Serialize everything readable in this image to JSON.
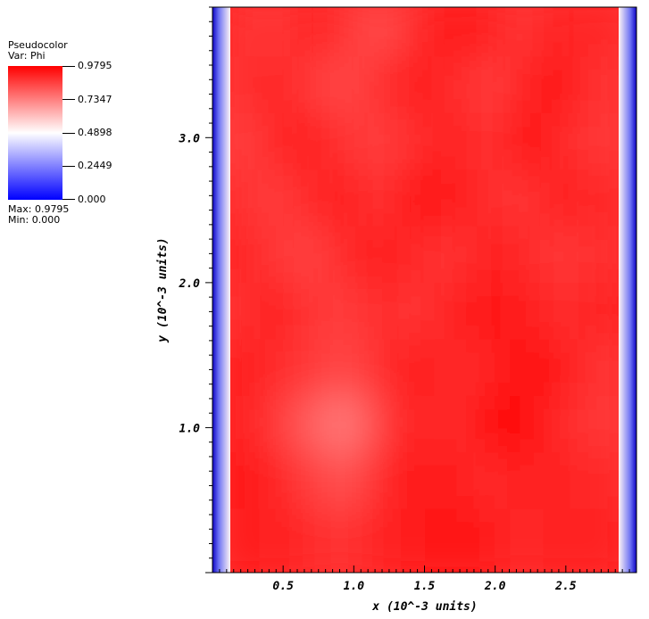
{
  "legend": {
    "title": "Pseudocolor",
    "var": "Var: Phi",
    "ticks": [
      "0.9795",
      "0.7347",
      "0.4898",
      "0.2449",
      "0.000"
    ],
    "max": "Max:  0.9795",
    "min": "Min:  0.000"
  },
  "chart_data": {
    "type": "heatmap",
    "variable": "Phi",
    "xlabel": "x (10^-3 units)",
    "ylabel": "y (10^-3 units)",
    "xlim": [
      0,
      3.0
    ],
    "ylim": [
      0,
      3.9
    ],
    "x_ticks": [
      0.5,
      1.0,
      1.5,
      2.0,
      2.5
    ],
    "x_tick_labels": [
      "0.5",
      "1.0",
      "1.5",
      "2.0",
      "2.5"
    ],
    "y_ticks": [
      1.0,
      2.0,
      3.0
    ],
    "y_tick_labels": [
      "1.0",
      "2.0",
      "3.0"
    ],
    "color_range": [
      0.0,
      0.9795
    ],
    "colormap": [
      "#0000ff",
      "#ffffff",
      "#ff0000"
    ],
    "values": [
      [
        0.02,
        0.9,
        0.86,
        0.92,
        0.88,
        0.83,
        0.9,
        0.94,
        0.91,
        0.87,
        0.92,
        0.9,
        0.02
      ],
      [
        0.02,
        0.88,
        0.91,
        0.87,
        0.84,
        0.89,
        0.93,
        0.9,
        0.86,
        0.91,
        0.94,
        0.88,
        0.02
      ],
      [
        0.02,
        0.85,
        0.9,
        0.93,
        0.88,
        0.86,
        0.89,
        0.92,
        0.88,
        0.95,
        0.9,
        0.87,
        0.02
      ],
      [
        0.02,
        0.89,
        0.86,
        0.9,
        0.92,
        0.88,
        0.95,
        0.93,
        0.89,
        0.88,
        0.93,
        0.9,
        0.02
      ],
      [
        0.02,
        0.91,
        0.88,
        0.85,
        0.9,
        0.93,
        0.9,
        0.88,
        0.92,
        0.9,
        0.87,
        0.89,
        0.02
      ],
      [
        0.02,
        0.88,
        0.92,
        0.88,
        0.86,
        0.9,
        0.88,
        0.91,
        0.94,
        0.92,
        0.89,
        0.91,
        0.02
      ],
      [
        0.02,
        0.93,
        0.9,
        0.87,
        0.84,
        0.89,
        0.92,
        0.9,
        0.91,
        0.95,
        0.92,
        0.88,
        0.02
      ],
      [
        0.02,
        0.92,
        0.88,
        0.8,
        0.74,
        0.86,
        0.93,
        0.89,
        0.95,
        0.96,
        0.9,
        0.87,
        0.02
      ],
      [
        0.02,
        0.94,
        0.91,
        0.86,
        0.82,
        0.9,
        0.94,
        0.92,
        0.9,
        0.92,
        0.91,
        0.9,
        0.02
      ],
      [
        0.02,
        0.91,
        0.93,
        0.9,
        0.88,
        0.91,
        0.93,
        0.95,
        0.92,
        0.9,
        0.93,
        0.91,
        0.02
      ]
    ]
  }
}
